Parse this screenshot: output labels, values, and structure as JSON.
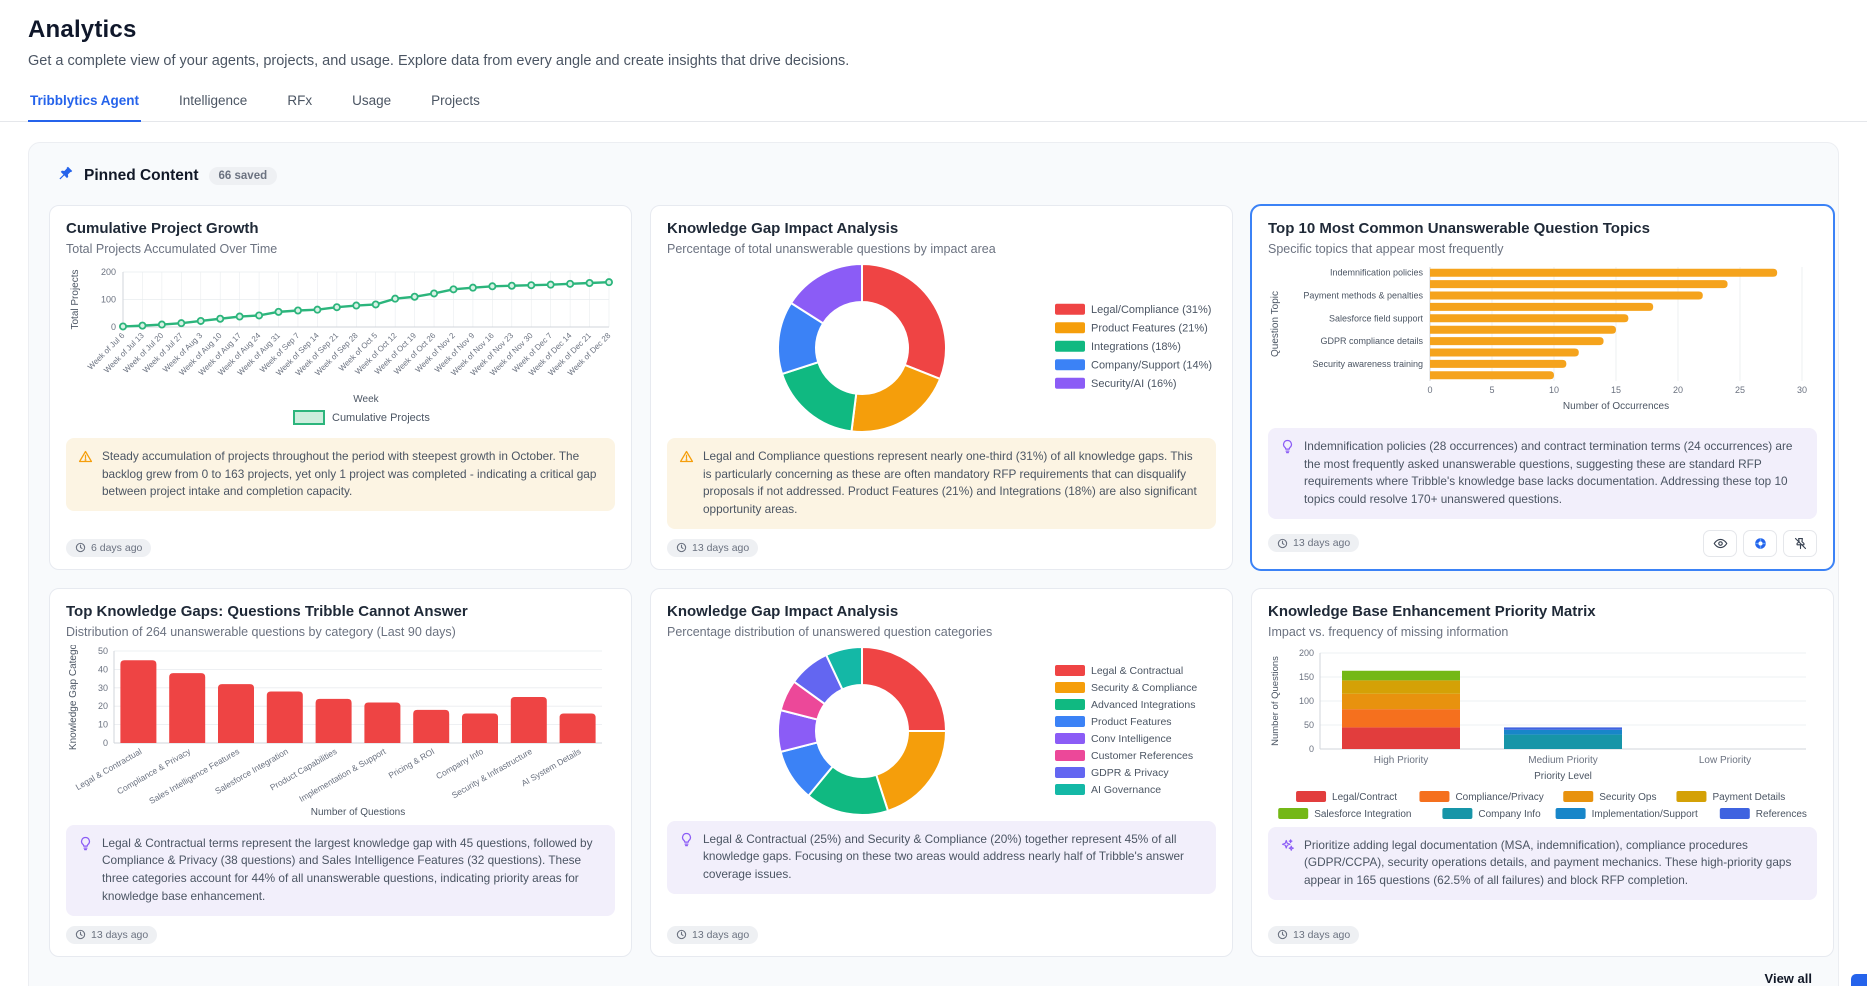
{
  "page": {
    "title": "Analytics",
    "subtitle": "Get a complete view of your agents, projects, and usage. Explore data from every angle and create insights that drive decisions."
  },
  "tabs": [
    {
      "label": "Tribblytics Agent",
      "active": true
    },
    {
      "label": "Intelligence",
      "active": false
    },
    {
      "label": "RFx",
      "active": false
    },
    {
      "label": "Usage",
      "active": false
    },
    {
      "label": "Projects",
      "active": false
    }
  ],
  "pinned": {
    "title": "Pinned Content",
    "badge": "66 saved",
    "view_all": "View all"
  },
  "cards": [
    {
      "title": "Cumulative Project Growth",
      "subtitle": "Total Projects Accumulated Over Time",
      "timestamp": "6 days ago",
      "insight": {
        "icon": "warning-icon",
        "text": "Steady accumulation of projects throughout the period with steepest growth in October. The backlog grew from 0 to 163 projects, yet only 1 project was completed - indicating a critical gap between project intake and completion capacity."
      },
      "chart": {
        "type": "line",
        "title_hidden": true,
        "x": [
          "Week of Jul 6",
          "Week of Jul 13",
          "Week of Jul 20",
          "Week of Jul 27",
          "Week of Aug 3",
          "Week of Aug 10",
          "Week of Aug 17",
          "Week of Aug 24",
          "Week of Aug 31",
          "Week of Sep 7",
          "Week of Sep 14",
          "Week of Sep 21",
          "Week of Sep 28",
          "Week of Oct 5",
          "Week of Oct 12",
          "Week of Oct 19",
          "Week of Oct 26",
          "Week of Nov 2",
          "Week of Nov 9",
          "Week of Nov 16",
          "Week of Nov 23",
          "Week of Nov 30",
          "Week of Dec 7",
          "Week of Dec 14",
          "Week of Dec 21",
          "Week of Dec 28"
        ],
        "series": [
          {
            "name": "Cumulative Projects",
            "values": [
              2,
              5,
              9,
              14,
              22,
              30,
              38,
              42,
              55,
              60,
              63,
              72,
              78,
              82,
              103,
              110,
              122,
              137,
              143,
              148,
              150,
              152,
              154,
              157,
              160,
              163
            ]
          }
        ],
        "xlabel": "Week",
        "ylabel": "Total Projects",
        "ylim": [
          0,
          200
        ],
        "yticks": [
          0,
          100,
          200
        ],
        "color": "#2cb57c",
        "legend": "Cumulative Projects"
      }
    },
    {
      "title": "Knowledge Gap Impact Analysis",
      "subtitle": "Percentage of total unanswerable questions by impact area",
      "timestamp": "13 days ago",
      "insight": {
        "icon": "warning-icon",
        "text": "Legal and Compliance questions represent nearly one-third (31%) of all knowledge gaps. This is particularly concerning as these are often mandatory RFP requirements that can disqualify proposals if not addressed. Product Features (21%) and Integrations (18%) are also significant opportunity areas."
      },
      "chart": {
        "type": "donut",
        "slices": [
          {
            "label": "Legal/Compliance (31%)",
            "value": 31,
            "color": "#ef4444"
          },
          {
            "label": "Product Features (21%)",
            "value": 21,
            "color": "#f59e0b"
          },
          {
            "label": "Integrations (18%)",
            "value": 18,
            "color": "#10b981"
          },
          {
            "label": "Company/Support (14%)",
            "value": 14,
            "color": "#3b82f6"
          },
          {
            "label": "Security/AI (16%)",
            "value": 16,
            "color": "#8b5cf6"
          }
        ],
        "legend_position": "right"
      }
    },
    {
      "title": "Top 10 Most Common Unanswerable Question Topics",
      "subtitle": "Specific topics that appear most frequently",
      "timestamp": "13 days ago",
      "selected": true,
      "actions": [
        "view-icon",
        "view-insights-icon",
        "unpin-icon"
      ],
      "insight": {
        "icon": "lightbulb-icon",
        "text": "Indemnification policies (28 occurrences) and contract termination terms (24 occurrences) are the most frequently asked unanswerable questions, suggesting these are standard RFP requirements where Tribble's knowledge base lacks documentation. Addressing these top 10 topics could resolve 170+ unanswered questions."
      },
      "chart": {
        "type": "hbar",
        "values": [
          28,
          24,
          22,
          18,
          16,
          15,
          14,
          12,
          11,
          10
        ],
        "tick_labels": [
          "Indemnification policies",
          "",
          "Payment methods & penalties",
          "",
          "Salesforce field support",
          "",
          "GDPR compliance details",
          "",
          "Security awareness training",
          ""
        ],
        "xlabel": "Number of Occurrences",
        "ylabel": "Question Topic",
        "xlim": [
          0,
          30
        ],
        "xticks": [
          0,
          5,
          10,
          15,
          20,
          25,
          30
        ],
        "color": "#f5a31c"
      }
    },
    {
      "title": "Top Knowledge Gaps: Questions Tribble Cannot Answer",
      "subtitle": "Distribution of 264 unanswerable questions by category (Last 90 days)",
      "timestamp": "13 days ago",
      "insight": {
        "icon": "lightbulb-icon",
        "text": "Legal & Contractual terms represent the largest knowledge gap with 45 questions, followed by Compliance & Privacy (38 questions) and Sales Intelligence Features (32 questions). These three categories account for 44% of all unanswerable questions, indicating priority areas for knowledge base enhancement."
      },
      "chart": {
        "type": "bar",
        "categories": [
          "Legal & Contractual",
          "Compliance & Privacy",
          "Sales Intelligence Features",
          "Salesforce Integration",
          "Product Capabilities",
          "Implementation & Support",
          "Pricing & ROI",
          "Company Info",
          "Security & Infrastructure",
          "AI System Details"
        ],
        "values": [
          45,
          38,
          32,
          28,
          24,
          22,
          18,
          16,
          25,
          16
        ],
        "xlabel": "Number of Questions",
        "ylabel": "Knowledge Gap Catego",
        "ylim": [
          0,
          50
        ],
        "yticks": [
          0,
          10,
          20,
          30,
          40,
          50
        ],
        "color": "#ee4444"
      }
    },
    {
      "title": "Knowledge Gap Impact Analysis",
      "subtitle": "Percentage distribution of unanswered question categories",
      "timestamp": "13 days ago",
      "insight": {
        "icon": "lightbulb-icon",
        "text": "Legal & Contractual (25%) and Security & Compliance (20%) together represent 45% of all knowledge gaps. Focusing on these two areas would address nearly half of Tribble's answer coverage issues."
      },
      "chart": {
        "type": "donut",
        "slices": [
          {
            "label": "Legal & Contractual",
            "value": 25,
            "color": "#ef4444"
          },
          {
            "label": "Security & Compliance",
            "value": 20,
            "color": "#f59e0b"
          },
          {
            "label": "Advanced Integrations",
            "value": 16,
            "color": "#10b981"
          },
          {
            "label": "Product Features",
            "value": 10,
            "color": "#3b82f6"
          },
          {
            "label": "Conv Intelligence",
            "value": 8,
            "color": "#8b5cf6"
          },
          {
            "label": "Customer References",
            "value": 6,
            "color": "#ec4899"
          },
          {
            "label": "GDPR & Privacy",
            "value": 8,
            "color": "#6366f1"
          },
          {
            "label": "AI Governance",
            "value": 7,
            "color": "#14b8a6"
          }
        ],
        "legend_position": "right"
      }
    },
    {
      "title": "Knowledge Base Enhancement Priority Matrix",
      "subtitle": "Impact vs. frequency of missing information",
      "timestamp": "13 days ago",
      "insight": {
        "icon": "sparkles-icon",
        "text": "Prioritize adding legal documentation (MSA, indemnification), compliance procedures (GDPR/CCPA), security operations details, and payment mechanics. These high-priority gaps appear in 165 questions (62.5% of all failures) and block RFP completion."
      },
      "chart": {
        "type": "stacked-bar",
        "categories": [
          "High Priority",
          "Medium Priority",
          "Low Priority"
        ],
        "series": [
          {
            "name": "Legal/Contract",
            "color": "#e23d3d",
            "values": [
              45,
              0,
              0
            ]
          },
          {
            "name": "Compliance/Privacy",
            "color": "#f5701e",
            "values": [
              38,
              0,
              0
            ]
          },
          {
            "name": "Security Ops",
            "color": "#e8920e",
            "values": [
              32,
              0,
              0
            ]
          },
          {
            "name": "Payment Details",
            "color": "#d4a106",
            "values": [
              28,
              0,
              0
            ]
          },
          {
            "name": "Salesforce Integration",
            "color": "#74b816",
            "values": [
              20,
              0,
              0
            ]
          },
          {
            "name": "Company Info",
            "color": "#1795a8",
            "values": [
              0,
              30,
              0
            ]
          },
          {
            "name": "Implementation/Support",
            "color": "#1886c9",
            "values": [
              0,
              10,
              0
            ]
          },
          {
            "name": "References",
            "color": "#3f63e0",
            "values": [
              0,
              5,
              0
            ]
          }
        ],
        "xlabel": "Priority Level",
        "ylabel": "Number of Questions",
        "ylim": [
          0,
          200
        ],
        "yticks": [
          0,
          50,
          100,
          150,
          200
        ]
      }
    }
  ]
}
